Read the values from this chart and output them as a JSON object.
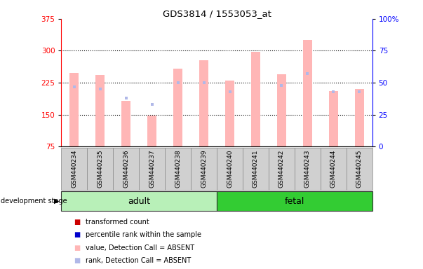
{
  "title": "GDS3814 / 1553053_at",
  "samples": [
    "GSM440234",
    "GSM440235",
    "GSM440236",
    "GSM440237",
    "GSM440238",
    "GSM440239",
    "GSM440240",
    "GSM440241",
    "GSM440242",
    "GSM440243",
    "GSM440244",
    "GSM440245"
  ],
  "transformed_count": [
    248,
    243,
    183,
    148,
    258,
    278,
    230,
    298,
    245,
    325,
    205,
    210
  ],
  "percentile_rank": [
    47,
    45,
    38,
    33,
    50,
    50,
    43,
    null,
    48,
    57,
    43,
    43
  ],
  "ylim_left": [
    75,
    375
  ],
  "ylim_right": [
    0,
    100
  ],
  "yticks_left": [
    75,
    150,
    225,
    300,
    375
  ],
  "yticks_right": [
    0,
    25,
    50,
    75,
    100
  ],
  "bar_color_absent": "#ffb6b6",
  "rank_color_absent": "#b0b8e8",
  "adult_color": "#b8f0b8",
  "fetal_color": "#33cc33",
  "grid_color": "#000000",
  "background_color": "#ffffff",
  "tick_bg_color": "#d0d0d0",
  "groups": [
    {
      "label": "adult",
      "start": 0,
      "end": 5
    },
    {
      "label": "fetal",
      "start": 6,
      "end": 11
    }
  ],
  "legend_items": [
    {
      "color": "#cc0000",
      "label": "transformed count",
      "style": "square"
    },
    {
      "color": "#0000cc",
      "label": "percentile rank within the sample",
      "style": "square"
    },
    {
      "color": "#ffb6b6",
      "label": "value, Detection Call = ABSENT",
      "style": "square"
    },
    {
      "color": "#b0b8e8",
      "label": "rank, Detection Call = ABSENT",
      "style": "square"
    }
  ]
}
